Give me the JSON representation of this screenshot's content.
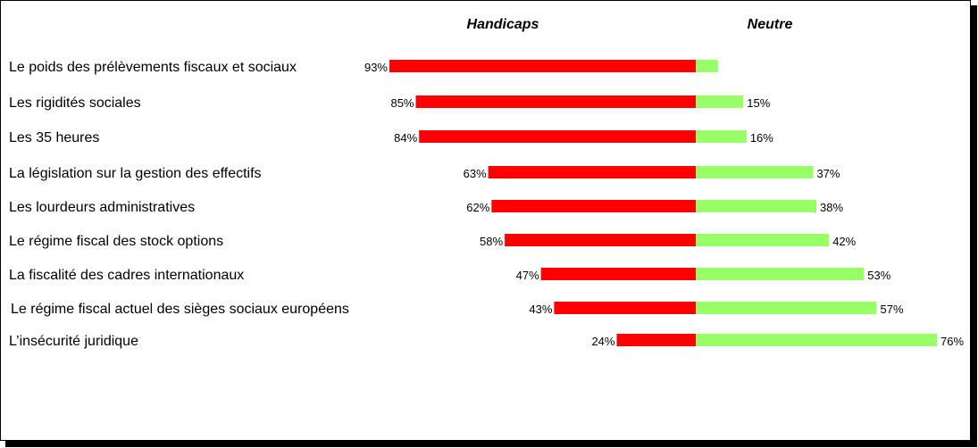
{
  "chart_data": {
    "type": "bar",
    "headers": {
      "left": "Handicaps",
      "right": "Neutre"
    },
    "categories": [
      "Le poids des prélèvements fiscaux et sociaux",
      "Les rigidités sociales",
      "Les 35 heures",
      "La législation sur la gestion des effectifs",
      "Les lourdeurs administratives",
      "Le régime fiscal des stock options",
      "La fiscalité des cadres internationaux",
      "Le régime fiscal actuel des sièges sociaux européens",
      "L’insécurité juridique"
    ],
    "series": [
      {
        "name": "Handicaps",
        "values": [
          93,
          85,
          84,
          63,
          62,
          58,
          47,
          43,
          24
        ],
        "labels": [
          "93%",
          "85%",
          "84%",
          "63%",
          "62%",
          "58%",
          "47%",
          "43%",
          "24%"
        ],
        "color": "#ff0000"
      },
      {
        "name": "Neutre",
        "values": [
          7,
          15,
          16,
          37,
          38,
          42,
          53,
          57,
          76
        ],
        "labels": [
          "",
          "15%",
          "16%",
          "37%",
          "38%",
          "42%",
          "53%",
          "57%",
          "76%"
        ],
        "color": "#99ff66"
      }
    ],
    "xlim": [
      0,
      100
    ],
    "grid": false,
    "legend": "none"
  }
}
